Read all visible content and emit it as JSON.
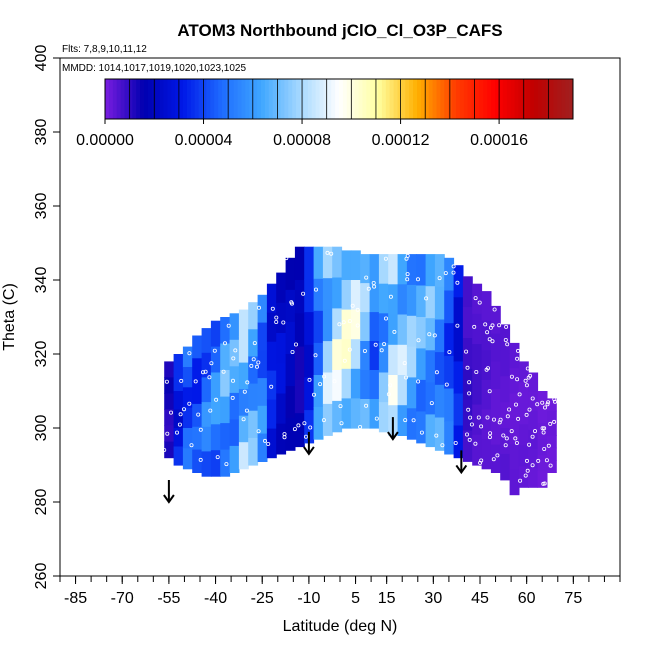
{
  "chart_data": {
    "type": "heatmap",
    "title": "ATOM3 Northbound jClO_Cl_O3P_CAFS",
    "flights_label": "Flts: 7,8,9,10,11,12",
    "dates_label": "MMDD: 1014,1017,1019,1020,1023,1025",
    "xlabel": "Latitude (deg N)",
    "ylabel": "Theta (C)",
    "xlim": [
      -90,
      90
    ],
    "ylim": [
      260,
      400
    ],
    "x_ticks": [
      -85,
      -70,
      -55,
      -40,
      -25,
      -10,
      5,
      15,
      30,
      45,
      60,
      75
    ],
    "x_tick_labels": [
      "-85",
      "-70",
      "-55",
      "-40",
      "-25",
      "-10",
      "5",
      "15",
      "30",
      "45",
      "60",
      "75"
    ],
    "y_ticks": [
      260,
      280,
      300,
      320,
      340,
      360,
      380,
      400
    ],
    "y_tick_labels": [
      "260",
      "280",
      "300",
      "320",
      "340",
      "360",
      "380",
      "400"
    ],
    "colorbar": {
      "min": 0.0,
      "max": 0.00019,
      "tick_values": [
        0.0,
        4e-05,
        8e-05,
        0.00012,
        0.00016
      ],
      "tick_labels": [
        "0.00000",
        "0.00004",
        "0.00008",
        "0.00012",
        "0.00016"
      ],
      "colors": [
        "#7a1de0",
        "#0000b0",
        "#0018e8",
        "#1e6cff",
        "#3fa6ff",
        "#a6d8ff",
        "#ffffff",
        "#ffffa0",
        "#ffb000",
        "#ff3c00",
        "#ff0000",
        "#c00000",
        "#a02020"
      ]
    },
    "arrows": [
      {
        "lat": -55,
        "theta": 280
      },
      {
        "lat": -10,
        "theta": 293
      },
      {
        "lat": 17,
        "theta": 297
      },
      {
        "lat": 39,
        "theta": 288
      }
    ],
    "columns": [
      {
        "lat": -55,
        "bottom": 292,
        "top": 318,
        "value": 1.2e-05
      },
      {
        "lat": -52,
        "bottom": 290,
        "top": 320,
        "value": 3e-05
      },
      {
        "lat": -49,
        "bottom": 289,
        "top": 322,
        "value": 4.2e-05
      },
      {
        "lat": -46,
        "bottom": 288,
        "top": 325,
        "value": 4e-05
      },
      {
        "lat": -43,
        "bottom": 287,
        "top": 327,
        "value": 4.8e-05
      },
      {
        "lat": -40,
        "bottom": 287,
        "top": 329,
        "value": 5.2e-05
      },
      {
        "lat": -37,
        "bottom": 287,
        "top": 330,
        "value": 6e-05
      },
      {
        "lat": -34,
        "bottom": 288,
        "top": 331,
        "value": 5.8e-05
      },
      {
        "lat": -31,
        "bottom": 289,
        "top": 332,
        "value": 7e-05
      },
      {
        "lat": -28,
        "bottom": 290,
        "top": 334,
        "value": 6.2e-05
      },
      {
        "lat": -25,
        "bottom": 291,
        "top": 336,
        "value": 5e-05
      },
      {
        "lat": -22,
        "bottom": 292,
        "top": 339,
        "value": 3e-05
      },
      {
        "lat": -19,
        "bottom": 293,
        "top": 342,
        "value": 2.4e-05
      },
      {
        "lat": -16,
        "bottom": 294,
        "top": 346,
        "value": 2e-05
      },
      {
        "lat": -13,
        "bottom": 295,
        "top": 349,
        "value": 1.6e-05
      },
      {
        "lat": -10,
        "bottom": 296,
        "top": 349,
        "value": 3e-05
      },
      {
        "lat": -7,
        "bottom": 297,
        "top": 349,
        "value": 5.2e-05
      },
      {
        "lat": -4,
        "bottom": 298,
        "top": 349,
        "value": 7.2e-05
      },
      {
        "lat": -1,
        "bottom": 299,
        "top": 349,
        "value": 8.2e-05
      },
      {
        "lat": 2,
        "bottom": 300,
        "top": 348,
        "value": 8.6e-05
      },
      {
        "lat": 5,
        "bottom": 300,
        "top": 348,
        "value": 8e-05
      },
      {
        "lat": 8,
        "bottom": 300,
        "top": 347,
        "value": 6.6e-05
      },
      {
        "lat": 11,
        "bottom": 300,
        "top": 347,
        "value": 5e-05
      },
      {
        "lat": 14,
        "bottom": 299,
        "top": 347,
        "value": 6.4e-05
      },
      {
        "lat": 17,
        "bottom": 298,
        "top": 347,
        "value": 7.8e-05
      },
      {
        "lat": 20,
        "bottom": 298,
        "top": 347,
        "value": 7.2e-05
      },
      {
        "lat": 23,
        "bottom": 297,
        "top": 347,
        "value": 6.6e-05
      },
      {
        "lat": 26,
        "bottom": 296,
        "top": 347,
        "value": 6e-05
      },
      {
        "lat": 29,
        "bottom": 295,
        "top": 347,
        "value": 6.2e-05
      },
      {
        "lat": 32,
        "bottom": 294,
        "top": 347,
        "value": 5.6e-05
      },
      {
        "lat": 35,
        "bottom": 293,
        "top": 346,
        "value": 4.4e-05
      },
      {
        "lat": 38,
        "bottom": 292,
        "top": 344,
        "value": 3e-05
      },
      {
        "lat": 41,
        "bottom": 291,
        "top": 341,
        "value": 8e-06
      },
      {
        "lat": 44,
        "bottom": 290,
        "top": 339,
        "value": 6e-06
      },
      {
        "lat": 47,
        "bottom": 289,
        "top": 337,
        "value": 5e-06
      },
      {
        "lat": 50,
        "bottom": 288,
        "top": 333,
        "value": 4e-06
      },
      {
        "lat": 53,
        "bottom": 286,
        "top": 328,
        "value": 4e-06
      },
      {
        "lat": 56,
        "bottom": 282,
        "top": 323,
        "value": 3e-06
      },
      {
        "lat": 59,
        "bottom": 284,
        "top": 318,
        "value": 3e-06
      },
      {
        "lat": 62,
        "bottom": 284,
        "top": 315,
        "value": 3e-06
      },
      {
        "lat": 65,
        "bottom": 284,
        "top": 310,
        "value": 2e-06
      },
      {
        "lat": 68,
        "bottom": 288,
        "top": 308,
        "value": 2e-06
      }
    ]
  }
}
